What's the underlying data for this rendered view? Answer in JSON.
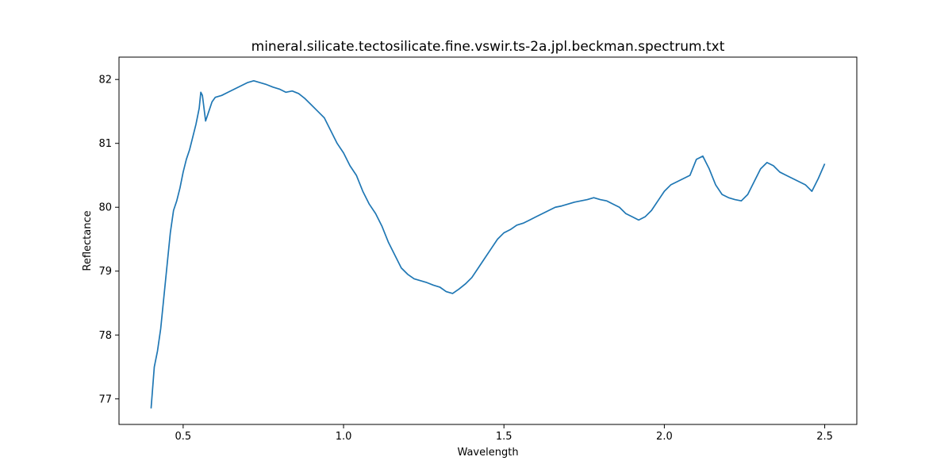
{
  "chart_data": {
    "type": "line",
    "title": "mineral.silicate.tectosilicate.fine.vswir.ts-2a.jpl.beckman.spectrum.txt",
    "xlabel": "Wavelength",
    "ylabel": "Reflectance",
    "xlim": [
      0.3,
      2.6
    ],
    "ylim": [
      76.6,
      82.35
    ],
    "grid": false,
    "legend": "none",
    "xticks": [
      0.5,
      1.0,
      1.5,
      2.0,
      2.5
    ],
    "xtick_labels": [
      "0.5",
      "1.0",
      "1.5",
      "2.0",
      "2.5"
    ],
    "yticks": [
      77,
      78,
      79,
      80,
      81,
      82
    ],
    "ytick_labels": [
      "77",
      "78",
      "79",
      "80",
      "81",
      "82"
    ],
    "series": [
      {
        "color": "#1f77b4",
        "x": [
          0.4,
          0.41,
          0.42,
          0.43,
          0.44,
          0.45,
          0.46,
          0.47,
          0.48,
          0.49,
          0.5,
          0.51,
          0.52,
          0.53,
          0.54,
          0.55,
          0.555,
          0.56,
          0.57,
          0.58,
          0.59,
          0.6,
          0.62,
          0.64,
          0.66,
          0.68,
          0.7,
          0.72,
          0.74,
          0.76,
          0.78,
          0.8,
          0.82,
          0.84,
          0.86,
          0.88,
          0.9,
          0.92,
          0.94,
          0.96,
          0.98,
          1.0,
          1.02,
          1.04,
          1.06,
          1.08,
          1.1,
          1.12,
          1.14,
          1.16,
          1.18,
          1.2,
          1.22,
          1.24,
          1.26,
          1.28,
          1.3,
          1.32,
          1.34,
          1.36,
          1.38,
          1.4,
          1.42,
          1.44,
          1.46,
          1.48,
          1.5,
          1.52,
          1.54,
          1.56,
          1.58,
          1.6,
          1.62,
          1.64,
          1.66,
          1.68,
          1.7,
          1.72,
          1.74,
          1.76,
          1.78,
          1.8,
          1.82,
          1.84,
          1.86,
          1.88,
          1.9,
          1.92,
          1.94,
          1.96,
          1.98,
          2.0,
          2.02,
          2.04,
          2.06,
          2.08,
          2.1,
          2.12,
          2.14,
          2.16,
          2.18,
          2.2,
          2.22,
          2.24,
          2.26,
          2.28,
          2.3,
          2.32,
          2.34,
          2.36,
          2.38,
          2.4,
          2.42,
          2.44,
          2.46,
          2.48,
          2.5
        ],
        "y": [
          76.85,
          77.5,
          77.75,
          78.1,
          78.6,
          79.1,
          79.6,
          79.95,
          80.1,
          80.3,
          80.55,
          80.75,
          80.9,
          81.1,
          81.3,
          81.55,
          81.8,
          81.75,
          81.35,
          81.5,
          81.65,
          81.72,
          81.75,
          81.8,
          81.85,
          81.9,
          81.95,
          81.98,
          81.95,
          81.92,
          81.88,
          81.85,
          81.8,
          81.82,
          81.78,
          81.7,
          81.6,
          81.5,
          81.4,
          81.2,
          81.0,
          80.85,
          80.65,
          80.5,
          80.25,
          80.05,
          79.9,
          79.7,
          79.45,
          79.25,
          79.05,
          78.95,
          78.88,
          78.85,
          78.82,
          78.78,
          78.75,
          78.68,
          78.65,
          78.72,
          78.8,
          78.9,
          79.05,
          79.2,
          79.35,
          79.5,
          79.6,
          79.65,
          79.72,
          79.75,
          79.8,
          79.85,
          79.9,
          79.95,
          80.0,
          80.02,
          80.05,
          80.08,
          80.1,
          80.12,
          80.15,
          80.12,
          80.1,
          80.05,
          80.0,
          79.9,
          79.85,
          79.8,
          79.85,
          79.95,
          80.1,
          80.25,
          80.35,
          80.4,
          80.45,
          80.5,
          80.75,
          80.8,
          80.6,
          80.35,
          80.2,
          80.15,
          80.12,
          80.1,
          80.2,
          80.4,
          80.6,
          80.7,
          80.65,
          80.55,
          80.5,
          80.45,
          80.4,
          80.35,
          80.25,
          80.45,
          80.68
        ]
      }
    ]
  }
}
